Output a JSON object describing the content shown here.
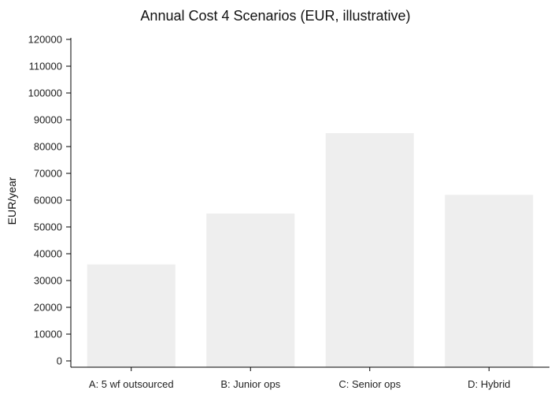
{
  "chart_data": {
    "type": "bar",
    "title": "Annual Cost 4 Scenarios (EUR, illustrative)",
    "xlabel": "",
    "ylabel": "EUR/year",
    "categories": [
      "A: 5 wf outsourced",
      "B: Junior ops",
      "C: Senior ops",
      "D: Hybrid"
    ],
    "values": [
      36000,
      55000,
      85000,
      62000
    ],
    "ylim": [
      0,
      120000
    ],
    "yticks": [
      0,
      10000,
      20000,
      30000,
      40000,
      50000,
      60000,
      70000,
      80000,
      90000,
      100000,
      110000,
      120000
    ],
    "grid": false,
    "bar_color": "#eeeeee"
  }
}
